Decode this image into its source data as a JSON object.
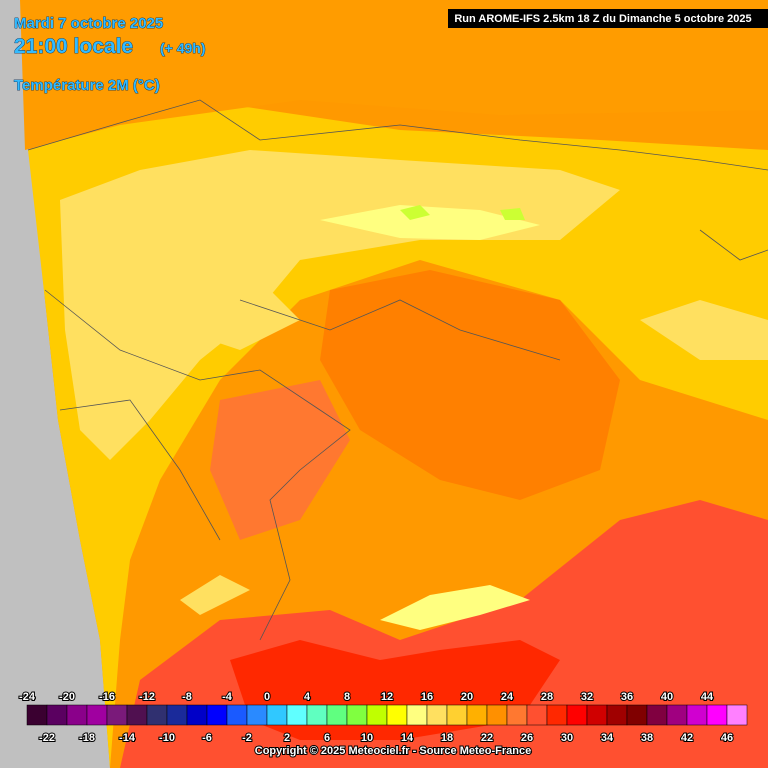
{
  "header": {
    "date": "Mardi 7 octobre 2025",
    "time": "21:00 locale",
    "lead": "(+ 49h)",
    "field": "Température 2M (°C)",
    "run": "Run AROME-IFS 2.5km 18 Z du Dimanche 5 octobre 2025"
  },
  "legend": {
    "values": [
      -24,
      -22,
      -20,
      -18,
      -16,
      -14,
      -12,
      -10,
      -8,
      -6,
      -4,
      -2,
      0,
      2,
      4,
      6,
      8,
      10,
      12,
      14,
      16,
      18,
      20,
      22,
      24,
      26,
      28,
      30,
      32,
      34,
      36,
      38,
      40,
      42,
      44,
      46
    ],
    "colors": [
      "#3a0030",
      "#5a0060",
      "#8a008a",
      "#a000a0",
      "#7a1a7a",
      "#501050",
      "#303070",
      "#1a2a9a",
      "#0000c8",
      "#0000ff",
      "#1a5aff",
      "#2a8aff",
      "#30c8ff",
      "#60ffff",
      "#60ffc0",
      "#60ff80",
      "#80ff40",
      "#c0ff00",
      "#ffff00",
      "#ffff80",
      "#ffe060",
      "#ffd030",
      "#ffb000",
      "#ff9000",
      "#ff7830",
      "#ff5030",
      "#ff2800",
      "#ff0000",
      "#d00000",
      "#a00000",
      "#800000",
      "#800040",
      "#a00080",
      "#d000d0",
      "#ff00ff",
      "#ff80ff"
    ]
  },
  "footer": {
    "copyright": "Copyright © 2025 Meteociel.fr - Source Meteo-France"
  }
}
